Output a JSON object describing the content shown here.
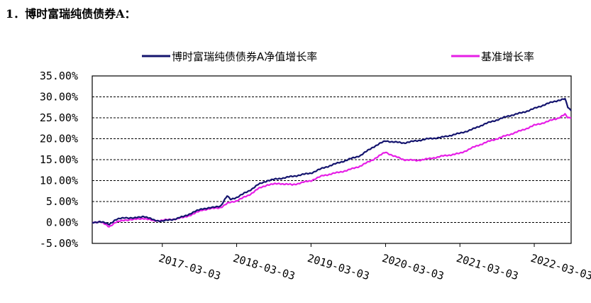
{
  "heading": "1．博时富瑞纯债债券A：",
  "chart_data": {
    "type": "line",
    "title": "",
    "xlabel": "",
    "ylabel": "",
    "ylim": [
      -0.05,
      0.35
    ],
    "y_ticks": [
      -0.05,
      0,
      0.05,
      0.1,
      0.15,
      0.2,
      0.25,
      0.3,
      0.35
    ],
    "y_tick_labels": [
      "-5.00%",
      "0.00%",
      "5.00%",
      "10.00%",
      "15.00%",
      "20.00%",
      "25.00%",
      "30.00%",
      "35.00%"
    ],
    "x_range": [
      "2016-03-24",
      "2022-08-31"
    ],
    "x_tick_labels": [
      "2017-03-03",
      "2018-03-03",
      "2019-03-03",
      "2020-03-03",
      "2021-03-03",
      "2022-03-03"
    ],
    "grid": "horizontal-dashed",
    "legend_position": "top",
    "series": [
      {
        "name": "博时富瑞纯债债券A净值增长率",
        "color": "#14146e",
        "points": [
          [
            "2016-03-24",
            0.0
          ],
          [
            "2016-05-01",
            0.002
          ],
          [
            "2016-06-15",
            -0.004
          ],
          [
            "2016-07-15",
            0.006
          ],
          [
            "2016-09-01",
            0.012
          ],
          [
            "2016-10-15",
            0.01
          ],
          [
            "2016-12-01",
            0.015
          ],
          [
            "2017-01-20",
            0.006
          ],
          [
            "2017-03-03",
            0.003
          ],
          [
            "2017-05-01",
            0.008
          ],
          [
            "2017-06-15",
            0.014
          ],
          [
            "2017-08-01",
            0.024
          ],
          [
            "2017-09-15",
            0.033
          ],
          [
            "2017-11-01",
            0.035
          ],
          [
            "2017-12-15",
            0.04
          ],
          [
            "2018-01-15",
            0.063
          ],
          [
            "2018-02-01",
            0.055
          ],
          [
            "2018-03-03",
            0.06
          ],
          [
            "2018-05-01",
            0.075
          ],
          [
            "2018-06-15",
            0.09
          ],
          [
            "2018-08-01",
            0.1
          ],
          [
            "2018-10-01",
            0.105
          ],
          [
            "2018-12-01",
            0.11
          ],
          [
            "2019-03-03",
            0.118
          ],
          [
            "2019-05-01",
            0.13
          ],
          [
            "2019-07-01",
            0.14
          ],
          [
            "2019-09-01",
            0.15
          ],
          [
            "2019-11-01",
            0.16
          ],
          [
            "2020-01-01",
            0.18
          ],
          [
            "2020-03-03",
            0.195
          ],
          [
            "2020-04-15",
            0.192
          ],
          [
            "2020-06-01",
            0.19
          ],
          [
            "2020-08-01",
            0.195
          ],
          [
            "2020-10-01",
            0.2
          ],
          [
            "2020-12-01",
            0.203
          ],
          [
            "2021-03-03",
            0.213
          ],
          [
            "2021-05-01",
            0.222
          ],
          [
            "2021-07-01",
            0.235
          ],
          [
            "2021-09-01",
            0.245
          ],
          [
            "2021-11-01",
            0.255
          ],
          [
            "2022-01-01",
            0.262
          ],
          [
            "2022-03-03",
            0.272
          ],
          [
            "2022-05-01",
            0.283
          ],
          [
            "2022-07-01",
            0.292
          ],
          [
            "2022-08-01",
            0.295
          ],
          [
            "2022-08-15",
            0.275
          ],
          [
            "2022-08-31",
            0.267
          ]
        ]
      },
      {
        "name": "基准增长率",
        "color": "#e61ee6",
        "points": [
          [
            "2016-03-24",
            0.0
          ],
          [
            "2016-05-01",
            0.002
          ],
          [
            "2016-06-15",
            -0.01
          ],
          [
            "2016-07-15",
            0.0
          ],
          [
            "2016-09-01",
            0.006
          ],
          [
            "2016-10-15",
            0.007
          ],
          [
            "2016-12-01",
            0.01
          ],
          [
            "2017-01-20",
            0.004
          ],
          [
            "2017-03-03",
            0.005
          ],
          [
            "2017-05-01",
            0.008
          ],
          [
            "2017-06-15",
            0.012
          ],
          [
            "2017-08-01",
            0.02
          ],
          [
            "2017-09-15",
            0.03
          ],
          [
            "2017-11-01",
            0.033
          ],
          [
            "2017-12-15",
            0.036
          ],
          [
            "2018-01-15",
            0.045
          ],
          [
            "2018-02-01",
            0.048
          ],
          [
            "2018-03-03",
            0.052
          ],
          [
            "2018-05-01",
            0.065
          ],
          [
            "2018-06-15",
            0.08
          ],
          [
            "2018-08-01",
            0.09
          ],
          [
            "2018-10-01",
            0.093
          ],
          [
            "2018-12-01",
            0.09
          ],
          [
            "2019-03-03",
            0.1
          ],
          [
            "2019-05-01",
            0.112
          ],
          [
            "2019-07-01",
            0.118
          ],
          [
            "2019-09-01",
            0.125
          ],
          [
            "2019-11-01",
            0.135
          ],
          [
            "2020-01-01",
            0.15
          ],
          [
            "2020-03-03",
            0.168
          ],
          [
            "2020-04-15",
            0.158
          ],
          [
            "2020-06-01",
            0.15
          ],
          [
            "2020-08-01",
            0.148
          ],
          [
            "2020-10-01",
            0.152
          ],
          [
            "2020-12-01",
            0.158
          ],
          [
            "2021-03-03",
            0.165
          ],
          [
            "2021-05-01",
            0.178
          ],
          [
            "2021-07-01",
            0.19
          ],
          [
            "2021-09-01",
            0.2
          ],
          [
            "2021-11-01",
            0.21
          ],
          [
            "2022-01-01",
            0.22
          ],
          [
            "2022-03-03",
            0.232
          ],
          [
            "2022-05-01",
            0.24
          ],
          [
            "2022-07-01",
            0.25
          ],
          [
            "2022-08-01",
            0.258
          ],
          [
            "2022-08-15",
            0.25
          ],
          [
            "2022-08-31",
            0.25
          ]
        ]
      }
    ]
  }
}
